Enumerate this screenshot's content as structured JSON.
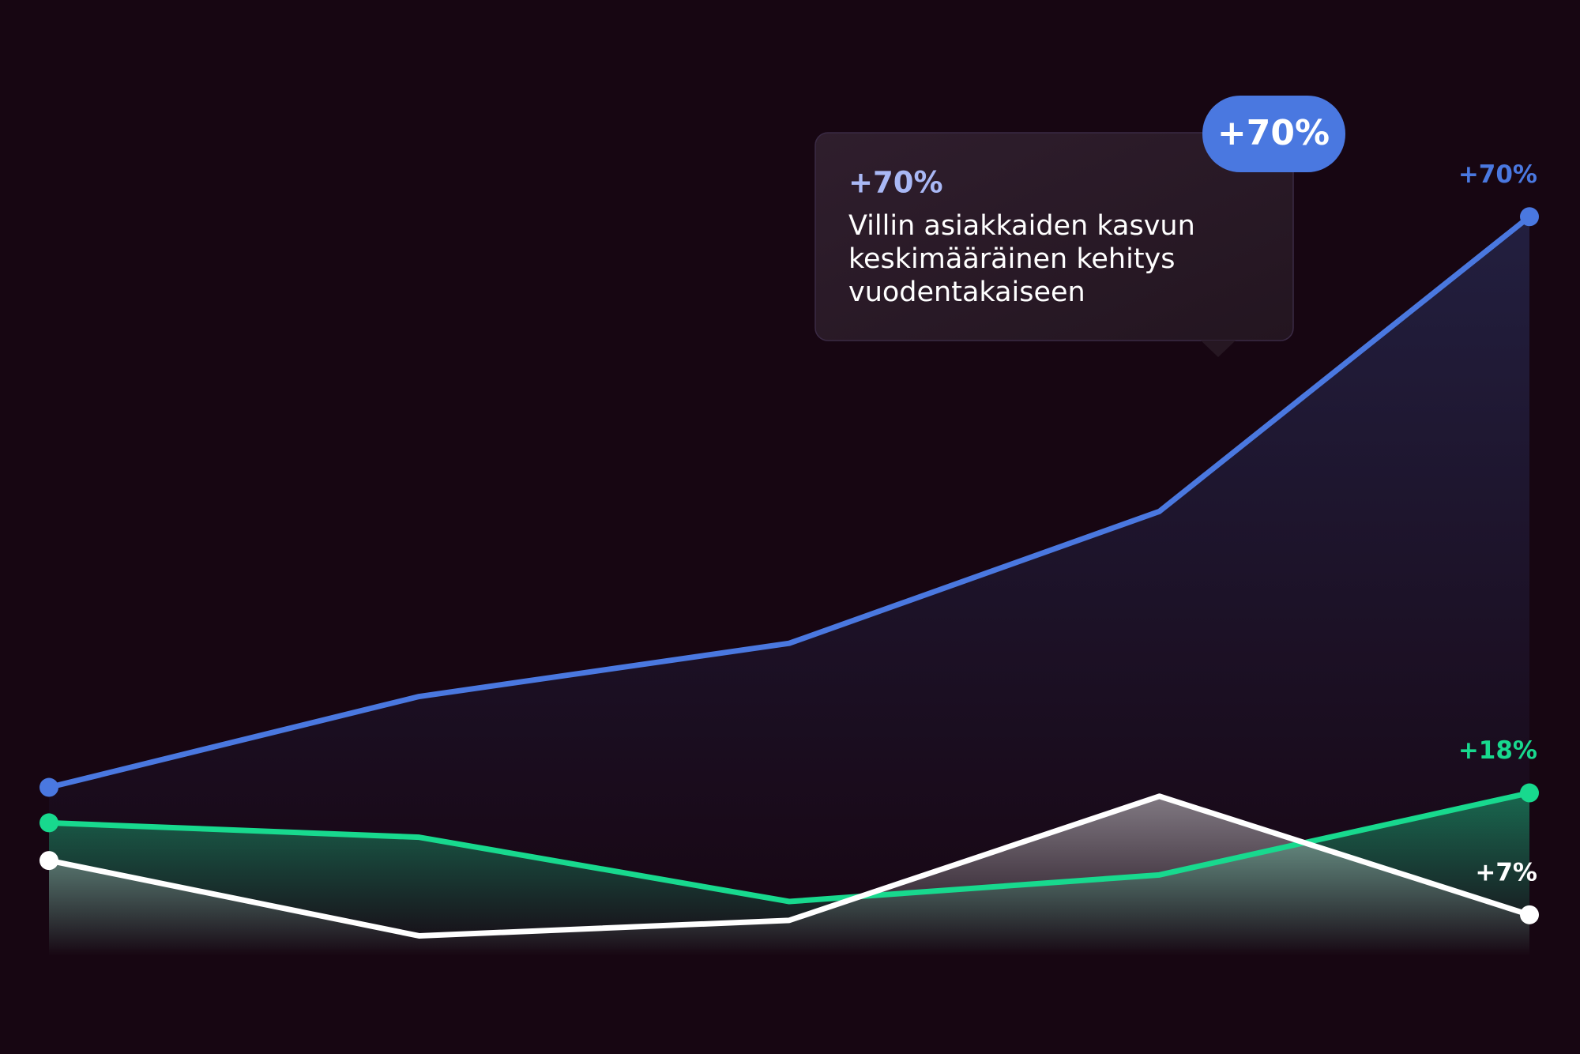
{
  "chart_data": {
    "type": "line",
    "categories": [
      null,
      null,
      null,
      null,
      null
    ],
    "ylim": [
      0,
      80
    ],
    "series": [
      {
        "color": "#4a78e0",
        "values": [
          18.5,
          26.7,
          31.5,
          43.4,
          70
        ],
        "value_labels": [
          null,
          null,
          null,
          null,
          "+70%"
        ]
      },
      {
        "color": "#18d98e",
        "values": [
          15.3,
          14,
          8.2,
          10.6,
          18
        ],
        "value_labels": [
          null,
          null,
          null,
          null,
          "+18%"
        ]
      },
      {
        "color": "#ffffff",
        "values": [
          11.9,
          5.1,
          6.5,
          17.7,
          7
        ],
        "value_labels": [
          null,
          null,
          null,
          null,
          "+7%"
        ]
      }
    ],
    "tooltip": {
      "badge": "+70%",
      "title": "+70%",
      "lines": [
        "Villin asiakkaiden kasvun",
        "keskimääräinen kehitys",
        "vuodentakaiseen"
      ]
    }
  }
}
